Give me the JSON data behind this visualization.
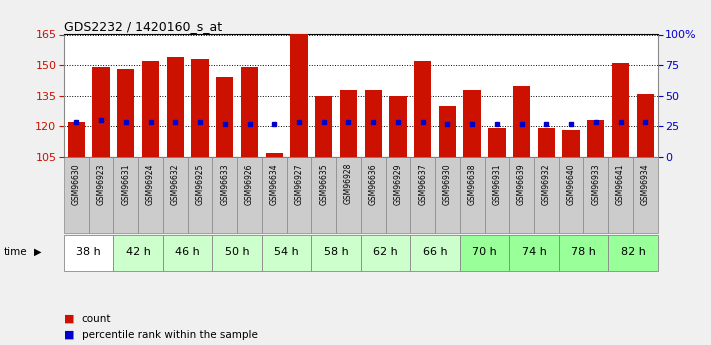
{
  "title": "GDS2232 / 1420160_s_at",
  "samples": [
    "GSM96630",
    "GSM96923",
    "GSM96631",
    "GSM96924",
    "GSM96632",
    "GSM96925",
    "GSM96633",
    "GSM96926",
    "GSM96634",
    "GSM96927",
    "GSM96635",
    "GSM96928",
    "GSM96636",
    "GSM96929",
    "GSM96637",
    "GSM96930",
    "GSM96638",
    "GSM96931",
    "GSM96639",
    "GSM96932",
    "GSM96640",
    "GSM96933",
    "GSM96641",
    "GSM96934"
  ],
  "time_groups": [
    {
      "label": "38 h",
      "indices": [
        0,
        1
      ]
    },
    {
      "label": "42 h",
      "indices": [
        2,
        3
      ]
    },
    {
      "label": "46 h",
      "indices": [
        4,
        5
      ]
    },
    {
      "label": "50 h",
      "indices": [
        6,
        7
      ]
    },
    {
      "label": "54 h",
      "indices": [
        8,
        9
      ]
    },
    {
      "label": "58 h",
      "indices": [
        10,
        11
      ]
    },
    {
      "label": "62 h",
      "indices": [
        12,
        13
      ]
    },
    {
      "label": "66 h",
      "indices": [
        14,
        15
      ]
    },
    {
      "label": "70 h",
      "indices": [
        16,
        17
      ]
    },
    {
      "label": "74 h",
      "indices": [
        18,
        19
      ]
    },
    {
      "label": "78 h",
      "indices": [
        20,
        21
      ]
    },
    {
      "label": "82 h",
      "indices": [
        22,
        23
      ]
    }
  ],
  "time_group_colors": [
    "#ffffff",
    "#ccffcc",
    "#ccffcc",
    "#ccffcc",
    "#ccffcc",
    "#ccffcc",
    "#ccffcc",
    "#ccffcc",
    "#99ff99",
    "#99ff99",
    "#99ff99",
    "#99ff99"
  ],
  "bar_tops": [
    122,
    149,
    148,
    152,
    154,
    153,
    144,
    149,
    107,
    165,
    135,
    138,
    138,
    135,
    152,
    130,
    138,
    119,
    140,
    119,
    118,
    123,
    151,
    136
  ],
  "bar_bottoms": [
    105,
    105,
    105,
    105,
    105,
    105,
    105,
    105,
    105,
    105,
    105,
    105,
    105,
    105,
    105,
    105,
    105,
    105,
    105,
    105,
    105,
    105,
    105,
    105
  ],
  "percentile_y": [
    122,
    123,
    122,
    122,
    122,
    122,
    121,
    121,
    121,
    122,
    122,
    122,
    122,
    122,
    122,
    121,
    121,
    121,
    121,
    121,
    121,
    122,
    122,
    122
  ],
  "ylim": [
    105,
    165
  ],
  "yticks_left": [
    105,
    120,
    135,
    150,
    165
  ],
  "right_pct_ticks": [
    0,
    25,
    50,
    75,
    100
  ],
  "right_pct_labels": [
    "0",
    "25",
    "50",
    "75",
    "100%"
  ],
  "bar_color": "#cc1100",
  "percentile_color": "#0000cc",
  "sample_bg": "#cccccc",
  "plot_bg": "#ffffff",
  "fig_bg": "#f0f0f0",
  "left_tick_color": "#cc1100",
  "right_tick_color": "#0000cc"
}
